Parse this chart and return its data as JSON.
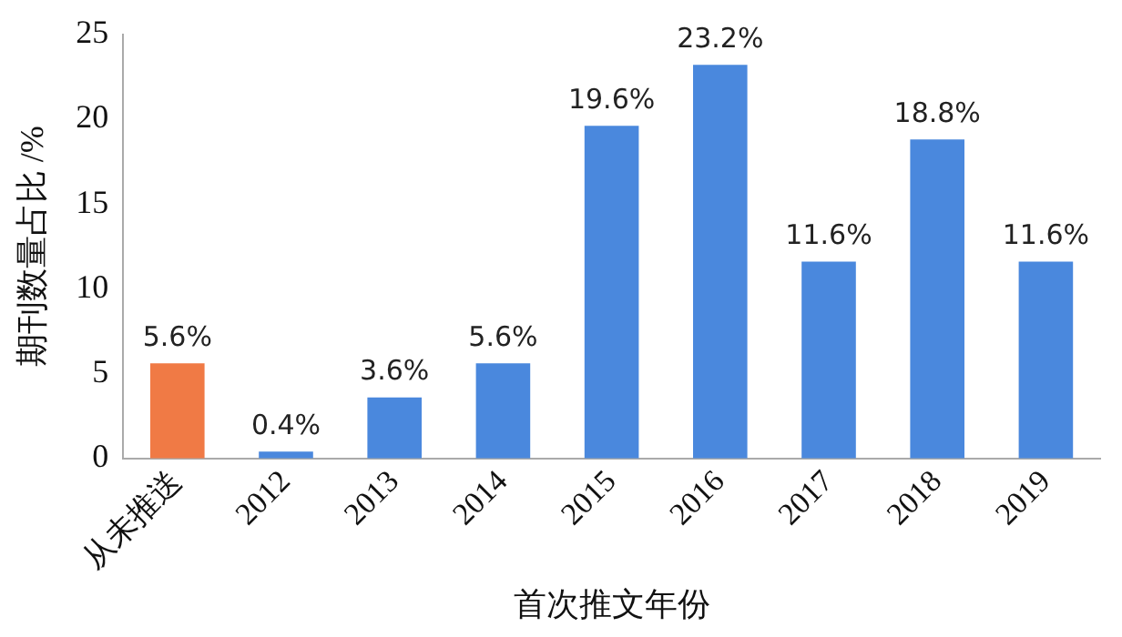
{
  "chart_data": {
    "type": "bar",
    "xlabel": "首次推文年份",
    "ylabel": "期刊数量占比 /%",
    "categories": [
      "从未推送",
      "2012",
      "2013",
      "2014",
      "2015",
      "2016",
      "2017",
      "2018",
      "2019"
    ],
    "values": [
      5.6,
      0.4,
      3.6,
      5.6,
      19.6,
      23.2,
      11.6,
      18.8,
      11.6
    ],
    "colors": [
      "#f07a45",
      "#4a88dd",
      "#4a88dd",
      "#4a88dd",
      "#4a88dd",
      "#4a88dd",
      "#4a88dd",
      "#4a88dd",
      "#4a88dd"
    ],
    "value_labels": [
      "5.6%",
      "0.4%",
      "3.6%",
      "5.6%",
      "19.6%",
      "23.2%",
      "11.6%",
      "18.8%",
      "11.6%"
    ],
    "ylim": [
      0,
      25
    ],
    "yticks": [
      0,
      5,
      10,
      15,
      20,
      25
    ],
    "grid": false,
    "legend": false
  }
}
